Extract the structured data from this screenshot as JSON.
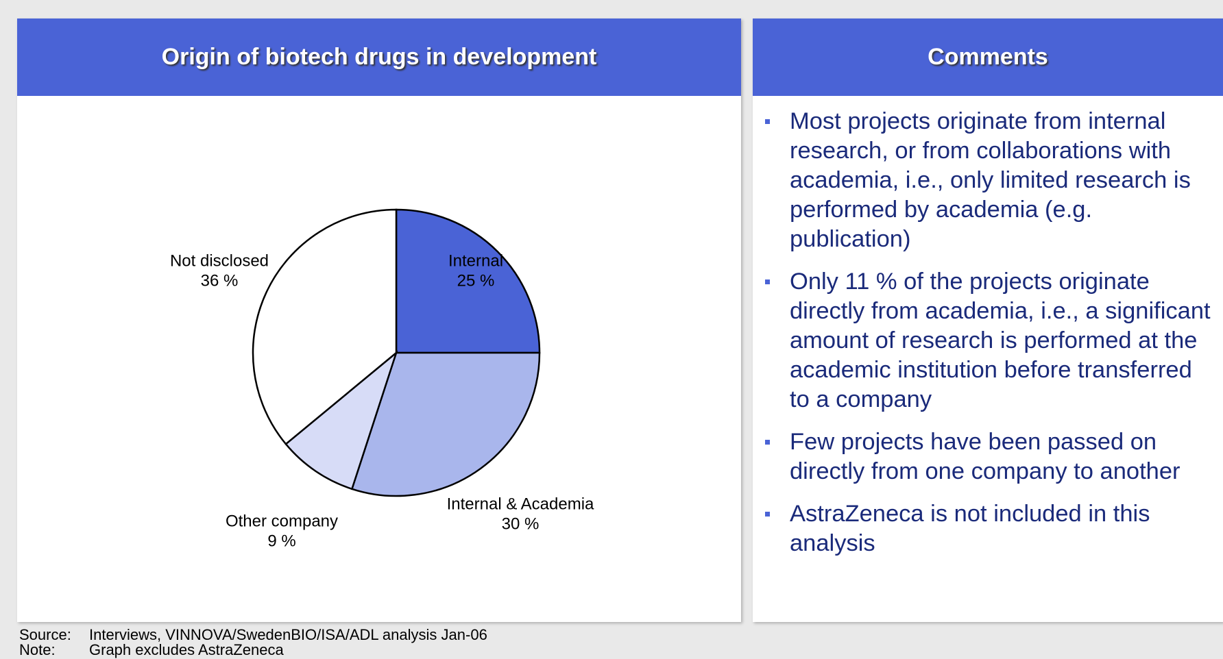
{
  "chart_data": {
    "type": "pie",
    "title": "Origin of biotech drugs in development",
    "categories": [
      "Internal",
      "Internal & Academia",
      "Other company",
      "Not disclosed"
    ],
    "values": [
      25,
      30,
      9,
      36
    ],
    "value_labels": [
      "25 %",
      "30 %",
      "9 %",
      "36 %"
    ],
    "colors": [
      "#4a63d6",
      "#a9b6ec",
      "#d7dcf7",
      "#ffffff"
    ]
  },
  "comments": {
    "title": "Comments",
    "items": [
      "Most projects originate from internal research, or from collaborations with academia, i.e., only limited research is performed by academia (e.g. publication)",
      "Only 11 % of the projects originate directly from academia, i.e., a significant amount of research is performed at the academic institution before transferred to a company",
      "Few projects have been passed on directly from one company to another",
      "AstraZeneca is not included in this analysis"
    ]
  },
  "footer": [
    {
      "label": "Source:",
      "text": "Interviews, VINNOVA/SwedenBIO/ISA/ADL analysis Jan-06"
    },
    {
      "label": "Note:",
      "text": "Graph excludes AstraZeneca"
    }
  ]
}
